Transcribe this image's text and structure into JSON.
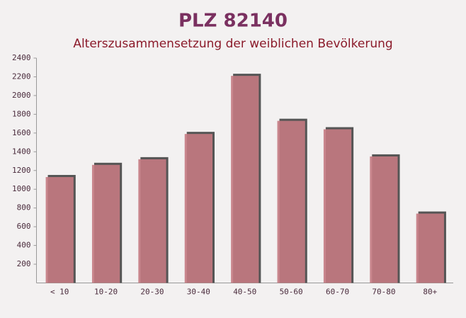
{
  "chart_data": {
    "type": "bar",
    "title": "PLZ 82140",
    "subtitle": "Alterszusammensetzung der weiblichen Bevölkerung",
    "categories": [
      "< 10",
      "10-20",
      "20-30",
      "30-40",
      "40-50",
      "50-60",
      "60-70",
      "70-80",
      "80+"
    ],
    "values": [
      1130,
      1260,
      1320,
      1590,
      2210,
      1730,
      1640,
      1350,
      740
    ],
    "color": "#c47a82",
    "ylim": [
      0,
      2400
    ],
    "yticks": [
      200,
      400,
      600,
      800,
      1000,
      1200,
      1400,
      1600,
      1800,
      2000,
      2200,
      2400
    ]
  }
}
